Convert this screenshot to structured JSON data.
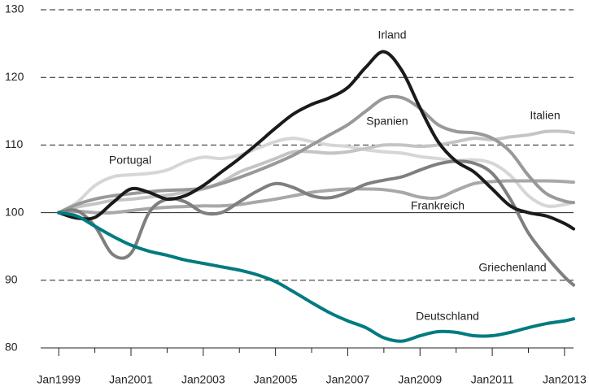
{
  "chart_data": {
    "type": "line",
    "x": [
      "1999-01",
      "1999-07",
      "2000-01",
      "2000-07",
      "2001-01",
      "2001-07",
      "2002-01",
      "2002-07",
      "2003-01",
      "2003-07",
      "2004-01",
      "2004-07",
      "2005-01",
      "2005-07",
      "2006-01",
      "2006-07",
      "2007-01",
      "2007-07",
      "2008-01",
      "2008-07",
      "2009-01",
      "2009-07",
      "2010-01",
      "2010-07",
      "2011-01",
      "2011-07",
      "2012-01",
      "2012-07",
      "2013-01",
      "2013-04"
    ],
    "series": [
      {
        "name": "Portugal",
        "color": "#d6d6d6",
        "values": [
          100,
          101.5,
          104,
          105.3,
          105.6,
          105.8,
          106.3,
          107.5,
          108.2,
          108,
          108.5,
          109.5,
          110.5,
          111,
          110.5,
          110,
          109.8,
          109.3,
          109,
          108.8,
          108.3,
          108,
          107.7,
          107.8,
          107.3,
          105.5,
          102.5,
          101,
          101.2,
          101.5
        ]
      },
      {
        "name": "Italien",
        "color": "#c4c4c4",
        "values": [
          100,
          100.8,
          101.3,
          101.8,
          102,
          102.3,
          102.6,
          103,
          103.5,
          104.5,
          106,
          107,
          108,
          109,
          109,
          108.8,
          109,
          109.5,
          110,
          110,
          109.8,
          110,
          110.5,
          111,
          110.8,
          111.2,
          111.5,
          112,
          112,
          111.8
        ]
      },
      {
        "name": "Frankreich",
        "color": "#a8a8a8",
        "values": [
          100,
          100.2,
          100,
          100,
          100.3,
          100.6,
          100.8,
          100.9,
          101,
          101,
          101.2,
          101.6,
          102,
          102.5,
          103,
          103.3,
          103.5,
          103.5,
          103.4,
          103,
          102.3,
          102.2,
          103.3,
          104.3,
          104.6,
          104.7,
          104.7,
          104.7,
          104.6,
          104.5
        ]
      },
      {
        "name": "Spanien",
        "color": "#999999",
        "values": [
          100,
          101.2,
          102,
          102.5,
          102.8,
          103.1,
          103.3,
          103.4,
          103.6,
          104.3,
          105.2,
          106.2,
          107.3,
          108.5,
          110,
          111.5,
          113,
          115,
          116.9,
          117,
          115.4,
          113,
          112,
          111.8,
          111,
          109,
          105.5,
          102.8,
          101.7,
          101.5
        ]
      },
      {
        "name": "Griechenland",
        "color": "#7f7f7f",
        "values": [
          100,
          100.3,
          98,
          93.8,
          94,
          100,
          102,
          101.6,
          100,
          100,
          101.6,
          103.2,
          104.3,
          103.7,
          102.5,
          102.2,
          103,
          104.2,
          104.8,
          105.3,
          106.3,
          107.2,
          107.6,
          107.3,
          105.8,
          102,
          97,
          93.5,
          90.5,
          89.3
        ]
      },
      {
        "name": "Irland",
        "color": "#1a1a1a",
        "values": [
          100,
          99.2,
          99.3,
          101.5,
          103.5,
          103,
          102,
          102.5,
          104,
          106,
          108,
          110.2,
          112.5,
          114.6,
          116,
          117,
          118.5,
          121.5,
          123.8,
          121,
          115.5,
          110.5,
          107.6,
          106,
          103.5,
          101,
          100,
          99.5,
          98.4,
          97.6
        ]
      },
      {
        "name": "Deutschland",
        "color": "#007b80",
        "values": [
          100,
          99.5,
          98,
          96.5,
          95.2,
          94.3,
          93.7,
          93,
          92.5,
          92,
          91.5,
          90.8,
          89.8,
          88.3,
          86.7,
          85.2,
          84,
          83,
          81.5,
          81,
          81.8,
          82.4,
          82.3,
          81.8,
          81.8,
          82.3,
          83,
          83.6,
          84,
          84.3
        ]
      }
    ],
    "xlim": [
      "1998-07",
      "2013-04"
    ],
    "xticks": [
      {
        "value": "1999-01",
        "label": "Jan1999"
      },
      {
        "value": "2001-01",
        "label": "Jan2001"
      },
      {
        "value": "2003-01",
        "label": "Jan2003"
      },
      {
        "value": "2005-01",
        "label": "Jan2005"
      },
      {
        "value": "2007-01",
        "label": "Jan2007"
      },
      {
        "value": "2009-01",
        "label": "Jan2009"
      },
      {
        "value": "2011-01",
        "label": "Jan2011"
      },
      {
        "value": "2013-01",
        "label": "Jan2013"
      }
    ],
    "xminorticks": [
      "2000-01",
      "2002-01",
      "2004-01",
      "2006-01",
      "2008-01",
      "2010-01",
      "2012-01"
    ],
    "ylim": [
      80,
      130
    ],
    "yticks": [
      80,
      90,
      100,
      110,
      120,
      130
    ],
    "baseline": 100,
    "grid": true
  }
}
